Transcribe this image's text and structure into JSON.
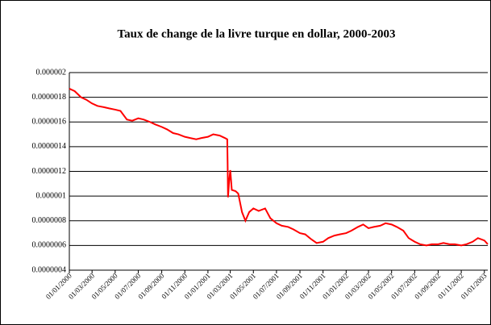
{
  "chart_data": {
    "type": "line",
    "title": "Taux de change de la livre turque en dollar, 2000-2003",
    "color": "#ff0000",
    "grid": true,
    "x": [
      "01/01/2000",
      "15/01/2000",
      "01/02/2000",
      "15/02/2000",
      "01/03/2000",
      "15/03/2000",
      "01/04/2000",
      "15/04/2000",
      "01/05/2000",
      "15/05/2000",
      "01/06/2000",
      "15/06/2000",
      "01/07/2000",
      "15/07/2000",
      "01/08/2000",
      "15/08/2000",
      "01/09/2000",
      "15/09/2000",
      "01/10/2000",
      "15/10/2000",
      "01/11/2000",
      "15/11/2000",
      "01/12/2000",
      "15/12/2000",
      "01/01/2001",
      "15/01/2001",
      "01/02/2001",
      "15/02/2001",
      "21/02/2001",
      "22/02/2001",
      "23/02/2001",
      "26/02/2001",
      "01/03/2001",
      "05/03/2001",
      "15/03/2001",
      "22/03/2001",
      "01/04/2001",
      "10/04/2001",
      "20/04/2001",
      "01/05/2001",
      "15/05/2001",
      "01/06/2001",
      "15/06/2001",
      "01/07/2001",
      "15/07/2001",
      "01/08/2001",
      "15/08/2001",
      "01/09/2001",
      "15/09/2001",
      "01/10/2001",
      "15/10/2001",
      "01/11/2001",
      "15/11/2001",
      "01/12/2001",
      "15/12/2001",
      "01/01/2002",
      "15/01/2002",
      "01/02/2002",
      "15/02/2002",
      "01/03/2002",
      "15/03/2002",
      "01/04/2002",
      "15/04/2002",
      "01/05/2002",
      "15/05/2002",
      "01/06/2002",
      "15/06/2002",
      "01/07/2002",
      "15/07/2002",
      "01/08/2002",
      "15/08/2002",
      "01/09/2002",
      "15/09/2002",
      "01/10/2002",
      "15/10/2002",
      "01/11/2002",
      "15/11/2002",
      "01/12/2002",
      "15/12/2002",
      "01/01/2003",
      "10/01/2003"
    ],
    "values": [
      1.87e-06,
      1.85e-06,
      1.8e-06,
      1.78e-06,
      1.75e-06,
      1.73e-06,
      1.72e-06,
      1.71e-06,
      1.7e-06,
      1.69e-06,
      1.62e-06,
      1.61e-06,
      1.63e-06,
      1.62e-06,
      1.6e-06,
      1.58e-06,
      1.56e-06,
      1.54e-06,
      1.51e-06,
      1.5e-06,
      1.48e-06,
      1.47e-06,
      1.46e-06,
      1.47e-06,
      1.48e-06,
      1.5e-06,
      1.49e-06,
      1.47e-06,
      1.46e-06,
      1.26e-06,
      9.9e-07,
      1.12e-06,
      1.21e-06,
      1.05e-06,
      1.04e-06,
      1.02e-06,
      8.7e-07,
      8e-07,
      8.7e-07,
      9e-07,
      8.8e-07,
      9e-07,
      8.2e-07,
      7.8e-07,
      7.6e-07,
      7.5e-07,
      7.3e-07,
      7e-07,
      6.9e-07,
      6.5e-07,
      6.2e-07,
      6.3e-07,
      6.6e-07,
      6.8e-07,
      6.9e-07,
      7e-07,
      7.2e-07,
      7.5e-07,
      7.7e-07,
      7.4e-07,
      7.5e-07,
      7.6e-07,
      7.8e-07,
      7.7e-07,
      7.5e-07,
      7.2e-07,
      6.6e-07,
      6.3e-07,
      6.1e-07,
      6e-07,
      6.1e-07,
      6.1e-07,
      6.2e-07,
      6.1e-07,
      6.1e-07,
      6e-07,
      6.1e-07,
      6.3e-07,
      6.6e-07,
      6.4e-07,
      6.1e-07
    ],
    "xlim": [
      "01/01/2000",
      "10/01/2003"
    ],
    "xticks": [
      "01/01/2000",
      "01/03/2000",
      "01/05/2000",
      "01/07/2000",
      "01/09/2000",
      "01/11/2000",
      "01/01/2001",
      "01/03/2001",
      "01/05/2001",
      "01/07/2001",
      "01/09/2001",
      "01/11/2001",
      "01/01/2002",
      "01/03/2002",
      "01/05/2002",
      "01/07/2002",
      "01/09/2002",
      "01/11/2002",
      "01/01/2003"
    ],
    "ylim": [
      4e-07,
      2e-06
    ],
    "yticks": [
      {
        "value": 4e-07,
        "label": "0.0000004"
      },
      {
        "value": 6e-07,
        "label": "0.0000006"
      },
      {
        "value": 8e-07,
        "label": "0.0000008"
      },
      {
        "value": 1e-06,
        "label": "0.000001"
      },
      {
        "value": 1.2e-06,
        "label": "0.0000012"
      },
      {
        "value": 1.4e-06,
        "label": "0.0000014"
      },
      {
        "value": 1.6e-06,
        "label": "0.0000016"
      },
      {
        "value": 1.8e-06,
        "label": "0.0000018"
      },
      {
        "value": 2e-06,
        "label": "0.000002"
      }
    ]
  }
}
